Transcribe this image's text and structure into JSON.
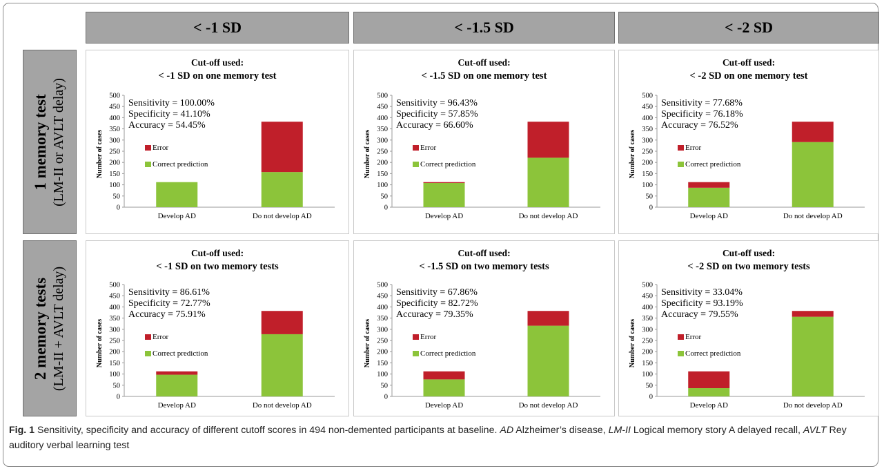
{
  "column_headers": [
    "< -1 SD",
    "< -1.5 SD",
    "< -2 SD"
  ],
  "row_headers": [
    {
      "title": "1 memory test",
      "subtitle": "(LM-II or AVLT delay)"
    },
    {
      "title": "2 memory tests",
      "subtitle": "(LM-II + AVLT delay)"
    }
  ],
  "caption": {
    "fig": "Fig. 1",
    "text": "Sensitivity, specificity and accuracy of different cutoff scores in 494 non-demented participants at baseline.",
    "abbr": [
      {
        "term": "AD",
        "def": "Alzheimer’s disease,"
      },
      {
        "term": "LM-II",
        "def": "Logical memory story A delayed recall,"
      },
      {
        "term": "AVLT",
        "def": "Rey auditory verbal learning test"
      }
    ]
  },
  "colors": {
    "error": "#c01f2a",
    "correct": "#8cc43a",
    "header_bg": "#a4a4a4"
  },
  "chart_data": [
    {
      "type": "bar",
      "stacked": true,
      "title_line1": "Cut-off used:",
      "title_line2": "< -1 SD on one memory test",
      "ylabel": "Number of cases",
      "ylim": [
        0,
        500
      ],
      "yticks": [
        0,
        50,
        100,
        150,
        200,
        250,
        300,
        350,
        400,
        450,
        500
      ],
      "categories": [
        "Develop AD",
        "Do not develop AD"
      ],
      "series": [
        {
          "name": "Correct prediction",
          "values": [
            112,
            157
          ]
        },
        {
          "name": "Error",
          "values": [
            0,
            225
          ]
        }
      ],
      "stats": [
        "Sensitivity = 100.00%",
        "Specificity = 41.10%",
        "Accuracy = 54.45%"
      ]
    },
    {
      "type": "bar",
      "stacked": true,
      "title_line1": "Cut-off used:",
      "title_line2": "< -1.5 SD on one memory test",
      "ylabel": "Number of cases",
      "ylim": [
        0,
        500
      ],
      "yticks": [
        0,
        50,
        100,
        150,
        200,
        250,
        300,
        350,
        400,
        450,
        500
      ],
      "categories": [
        "Develop AD",
        "Do not develop AD"
      ],
      "series": [
        {
          "name": "Correct prediction",
          "values": [
            108,
            221
          ]
        },
        {
          "name": "Error",
          "values": [
            4,
            161
          ]
        }
      ],
      "stats": [
        "Sensitivity = 96.43%",
        "Specificity = 57.85%",
        "Accuracy = 66.60%"
      ]
    },
    {
      "type": "bar",
      "stacked": true,
      "title_line1": "Cut-off used:",
      "title_line2": "< -2 SD on one memory test",
      "ylabel": "Number of cases",
      "ylim": [
        0,
        500
      ],
      "yticks": [
        0,
        50,
        100,
        150,
        200,
        250,
        300,
        350,
        400,
        450,
        500
      ],
      "categories": [
        "Develop AD",
        "Do not develop AD"
      ],
      "series": [
        {
          "name": "Correct prediction",
          "values": [
            87,
            291
          ]
        },
        {
          "name": "Error",
          "values": [
            25,
            91
          ]
        }
      ],
      "stats": [
        "Sensitivity = 77.68%",
        "Specificity = 76.18%",
        "Accuracy = 76.52%"
      ]
    },
    {
      "type": "bar",
      "stacked": true,
      "title_line1": "Cut-off used:",
      "title_line2": "< -1 SD on two memory tests",
      "ylabel": "Number of cases",
      "ylim": [
        0,
        500
      ],
      "yticks": [
        0,
        50,
        100,
        150,
        200,
        250,
        300,
        350,
        400,
        450,
        500
      ],
      "categories": [
        "Develop AD",
        "Do not develop AD"
      ],
      "series": [
        {
          "name": "Correct prediction",
          "values": [
            97,
            278
          ]
        },
        {
          "name": "Error",
          "values": [
            15,
            104
          ]
        }
      ],
      "stats": [
        "Sensitivity = 86.61%",
        "Specificity = 72.77%",
        "Accuracy = 75.91%"
      ]
    },
    {
      "type": "bar",
      "stacked": true,
      "title_line1": "Cut-off used:",
      "title_line2": "< -1.5 SD on two memory tests",
      "ylabel": "Number of cases",
      "ylim": [
        0,
        500
      ],
      "yticks": [
        0,
        50,
        100,
        150,
        200,
        250,
        300,
        350,
        400,
        450,
        500
      ],
      "categories": [
        "Develop AD",
        "Do not develop AD"
      ],
      "series": [
        {
          "name": "Correct prediction",
          "values": [
            76,
            316
          ]
        },
        {
          "name": "Error",
          "values": [
            36,
            66
          ]
        }
      ],
      "stats": [
        "Sensitivity = 67.86%",
        "Specificity = 82.72%",
        "Accuracy = 79.35%"
      ]
    },
    {
      "type": "bar",
      "stacked": true,
      "title_line1": "Cut-off used:",
      "title_line2": "< -2 SD on two memory tests",
      "ylabel": "Number of cases",
      "ylim": [
        0,
        500
      ],
      "yticks": [
        0,
        50,
        100,
        150,
        200,
        250,
        300,
        350,
        400,
        450,
        500
      ],
      "categories": [
        "Develop AD",
        "Do not develop AD"
      ],
      "series": [
        {
          "name": "Correct prediction",
          "values": [
            37,
            356
          ]
        },
        {
          "name": "Error",
          "values": [
            75,
            26
          ]
        }
      ],
      "stats": [
        "Sensitivity = 33.04%",
        "Specificity = 93.19%",
        "Accuracy = 79.55%"
      ]
    }
  ]
}
